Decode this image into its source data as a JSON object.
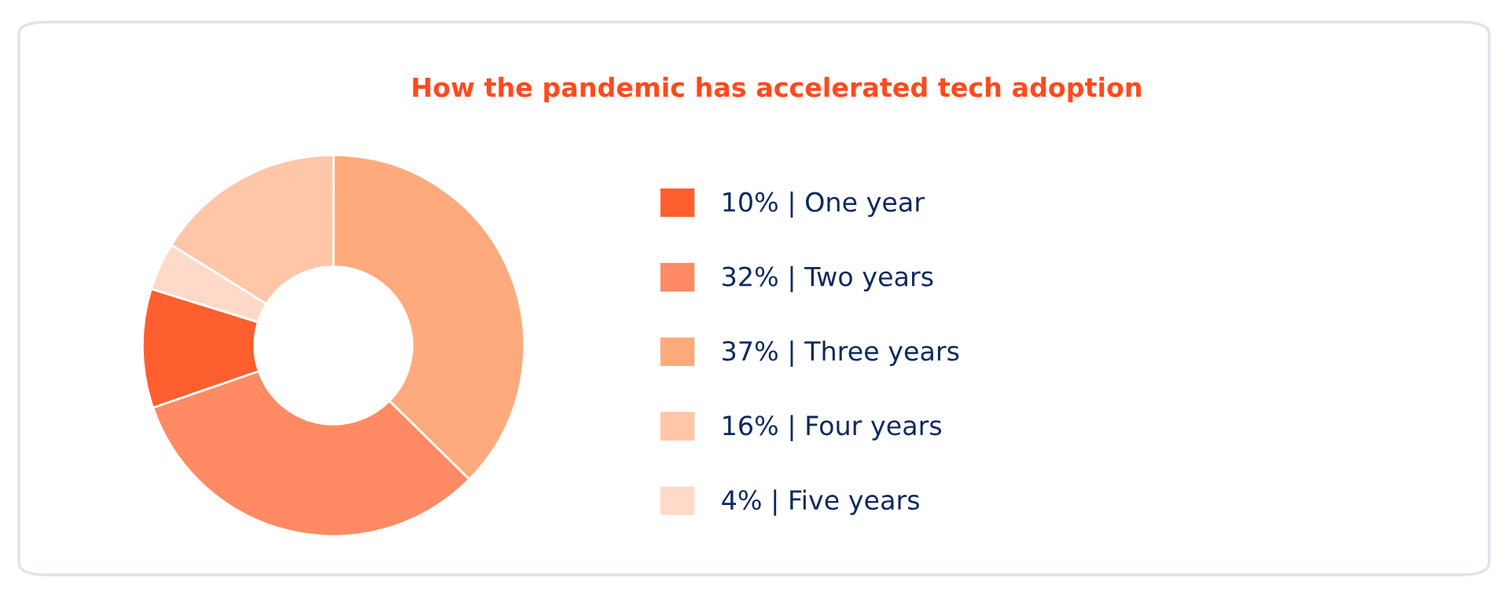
{
  "chart_data": {
    "type": "donut",
    "title": "How the pandemic has accelerated tech adoption",
    "categories": [
      "10% | One year",
      "32% | Two years",
      "37% | Three years",
      "16% | Four years",
      "4% | Five years"
    ],
    "values": [
      10,
      32,
      37,
      16,
      4
    ],
    "colors": [
      "#ff5f2e",
      "#ff8a63",
      "#ffaa7c",
      "#ffc6a7",
      "#ffdac8"
    ],
    "legend": "right"
  }
}
